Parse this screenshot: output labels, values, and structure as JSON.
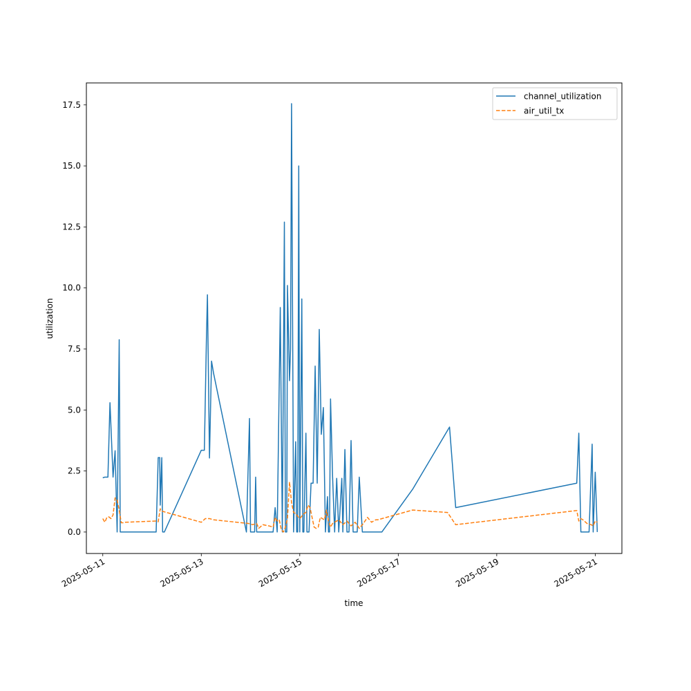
{
  "chart_data": {
    "type": "line",
    "title": "",
    "xlabel": "time",
    "ylabel": "utilization",
    "x_type": "date",
    "xlim": [
      "2025-05-10 16:00",
      "2025-05-21 13:00"
    ],
    "ylim": [
      -0.88,
      18.4
    ],
    "x_ticks": [
      "2025-05-11",
      "2025-05-13",
      "2025-05-15",
      "2025-05-17",
      "2025-05-19",
      "2025-05-21"
    ],
    "y_ticks": [
      "0.0",
      "2.5",
      "5.0",
      "7.5",
      "10.0",
      "12.5",
      "15.0",
      "17.5"
    ],
    "grid": false,
    "legend_position": "top-right",
    "series": [
      {
        "name": "channel_utilization",
        "color": "#1f77b4",
        "dash": "solid",
        "x": [
          "2025-05-11 00:00",
          "2025-05-11 01:00",
          "2025-05-11 02:30",
          "2025-05-11 03:30",
          "2025-05-11 05:00",
          "2025-05-11 06:00",
          "2025-05-11 07:00",
          "2025-05-11 08:00",
          "2025-05-11 08:30",
          "2025-05-11 09:00",
          "2025-05-11 10:00",
          "2025-05-11 11:30",
          "2025-05-12 02:00",
          "2025-05-12 03:00",
          "2025-05-12 03:45",
          "2025-05-12 04:00",
          "2025-05-12 04:45",
          "2025-05-12 05:10",
          "2025-05-12 06:00",
          "2025-05-13 00:00",
          "2025-05-13 01:30",
          "2025-05-13 02:30",
          "2025-05-13 03:00",
          "2025-05-13 04:00",
          "2025-05-13 05:00",
          "2025-05-13 06:00",
          "2025-05-13 22:00",
          "2025-05-13 23:30",
          "2025-05-14 00:00",
          "2025-05-14 02:00",
          "2025-05-14 02:30",
          "2025-05-14 03:00",
          "2025-05-14 11:00",
          "2025-05-14 12:00",
          "2025-05-14 13:00",
          "2025-05-14 14:30",
          "2025-05-14 15:30",
          "2025-05-14 16:30",
          "2025-05-14 17:00",
          "2025-05-14 17:40",
          "2025-05-14 18:00",
          "2025-05-14 19:00",
          "2025-05-14 19:30",
          "2025-05-14 20:00",
          "2025-05-14 21:00",
          "2025-05-14 22:00",
          "2025-05-14 22:30",
          "2025-05-14 23:00",
          "2025-05-14 23:30",
          "2025-05-15 00:00",
          "2025-05-15 01:00",
          "2025-05-15 01:30",
          "2025-05-15 02:00",
          "2025-05-15 03:00",
          "2025-05-15 03:30",
          "2025-05-15 04:30",
          "2025-05-15 05:30",
          "2025-05-15 06:30",
          "2025-05-15 07:30",
          "2025-05-15 08:30",
          "2025-05-15 09:30",
          "2025-05-15 10:30",
          "2025-05-15 11:30",
          "2025-05-15 12:30",
          "2025-05-15 13:30",
          "2025-05-15 14:00",
          "2025-05-15 14:30",
          "2025-05-15 15:00",
          "2025-05-15 16:00",
          "2025-05-15 17:00",
          "2025-05-15 18:00",
          "2025-05-15 19:00",
          "2025-05-15 20:30",
          "2025-05-15 21:00",
          "2025-05-15 22:00",
          "2025-05-15 23:00",
          "2025-05-16 00:00",
          "2025-05-16 01:00",
          "2025-05-16 02:00",
          "2025-05-16 03:00",
          "2025-05-16 04:00",
          "2025-05-16 05:00",
          "2025-05-16 06:30",
          "2025-05-16 07:30",
          "2025-05-16 08:00",
          "2025-05-16 10:00",
          "2025-05-16 11:00",
          "2025-05-16 12:30",
          "2025-05-16 13:30",
          "2025-05-16 16:00",
          "2025-05-17 07:00",
          "2025-05-18 01:00",
          "2025-05-18 04:00",
          "2025-05-20 15:00",
          "2025-05-20 16:00",
          "2025-05-20 17:00",
          "2025-05-20 19:00",
          "2025-05-20 21:00",
          "2025-05-20 22:30",
          "2025-05-20 23:00",
          "2025-05-21 00:00",
          "2025-05-21 01:00"
        ],
        "values": [
          2.22,
          2.25,
          2.25,
          5.3,
          2.25,
          3.33,
          0,
          7.88,
          0,
          0,
          0,
          0,
          0,
          3.05,
          3.05,
          1.1,
          3.05,
          0,
          0,
          3.35,
          3.35,
          7.9,
          9.72,
          3.03,
          7.0,
          6.5,
          0,
          4.65,
          0,
          0,
          2.25,
          0,
          0,
          1.0,
          0,
          9.2,
          0,
          12.7,
          0,
          0,
          10.1,
          6.2,
          7.5,
          17.55,
          0,
          3.7,
          0,
          0,
          15.0,
          0,
          9.55,
          0,
          0,
          4.05,
          0,
          0,
          2.0,
          2.0,
          6.8,
          2.0,
          8.3,
          4.0,
          5.1,
          0,
          1.45,
          0,
          0,
          5.45,
          2.25,
          0,
          2.2,
          0,
          2.2,
          0,
          3.38,
          0,
          0,
          3.75,
          0,
          0,
          0,
          2.25,
          0,
          0,
          0,
          0,
          0,
          0,
          0,
          0,
          1.75,
          4.3,
          1.0,
          2.0,
          4.05,
          0,
          0,
          0,
          3.6,
          0,
          2.45,
          0
        ]
      },
      {
        "name": "air_util_tx",
        "color": "#ff7f0e",
        "dash": "dashed",
        "x": [
          "2025-05-11 00:00",
          "2025-05-11 01:00",
          "2025-05-11 02:00",
          "2025-05-11 03:00",
          "2025-05-11 04:00",
          "2025-05-11 05:00",
          "2025-05-11 06:00",
          "2025-05-11 07:00",
          "2025-05-11 08:00",
          "2025-05-11 09:00",
          "2025-05-11 10:00",
          "2025-05-11 11:00",
          "2025-05-12 02:00",
          "2025-05-12 03:00",
          "2025-05-12 04:00",
          "2025-05-12 05:00",
          "2025-05-13 00:00",
          "2025-05-13 02:00",
          "2025-05-13 04:00",
          "2025-05-13 06:00",
          "2025-05-13 23:00",
          "2025-05-14 01:00",
          "2025-05-14 03:00",
          "2025-05-14 04:00",
          "2025-05-14 06:00",
          "2025-05-14 09:00",
          "2025-05-14 11:00",
          "2025-05-14 12:00",
          "2025-05-14 13:00",
          "2025-05-14 14:00",
          "2025-05-14 15:00",
          "2025-05-14 16:00",
          "2025-05-14 17:00",
          "2025-05-14 18:00",
          "2025-05-14 19:00",
          "2025-05-14 20:00",
          "2025-05-14 21:00",
          "2025-05-14 22:00",
          "2025-05-15 00:00",
          "2025-05-15 02:00",
          "2025-05-15 03:00",
          "2025-05-15 04:00",
          "2025-05-15 05:00",
          "2025-05-15 06:00",
          "2025-05-15 07:00",
          "2025-05-15 08:00",
          "2025-05-15 09:00",
          "2025-05-15 10:00",
          "2025-05-15 12:00",
          "2025-05-15 13:00",
          "2025-05-15 14:00",
          "2025-05-15 15:00",
          "2025-05-15 16:00",
          "2025-05-15 17:00",
          "2025-05-15 19:00",
          "2025-05-15 21:00",
          "2025-05-15 23:00",
          "2025-05-16 01:00",
          "2025-05-16 03:00",
          "2025-05-16 05:00",
          "2025-05-16 07:00",
          "2025-05-16 09:00",
          "2025-05-16 11:00",
          "2025-05-16 13:00",
          "2025-05-16 14:00",
          "2025-05-17 07:00",
          "2025-05-18 00:00",
          "2025-05-18 04:00",
          "2025-05-20 15:00",
          "2025-05-20 16:00",
          "2025-05-20 17:00",
          "2025-05-20 18:00",
          "2025-05-20 20:00",
          "2025-05-20 22:00",
          "2025-05-20 23:00",
          "2025-05-21 00:00",
          "2025-05-21 01:00"
        ],
        "values": [
          0.55,
          0.4,
          0.6,
          0.62,
          0.55,
          0.7,
          1.4,
          1.3,
          0.9,
          0.38,
          0.38,
          0.4,
          0.45,
          0.42,
          0.95,
          0.85,
          0.4,
          0.55,
          0.55,
          0.5,
          0.35,
          0.3,
          0.35,
          0.15,
          0.3,
          0.25,
          0.2,
          0.6,
          0.45,
          0.5,
          0.1,
          0.0,
          0.2,
          0.55,
          2.05,
          1.2,
          0.8,
          0.75,
          0.55,
          0.75,
          0.8,
          1.1,
          1.0,
          0.6,
          0.2,
          0.15,
          0.2,
          0.6,
          0.5,
          0.9,
          0.45,
          0.2,
          0.35,
          0.4,
          0.5,
          0.3,
          0.45,
          0.25,
          0.4,
          0.15,
          0.35,
          0.6,
          0.4,
          0.5,
          0.5,
          0.9,
          0.8,
          0.3,
          0.88,
          0.45,
          0.55,
          0.5,
          0.35,
          0.3,
          0.25,
          0.45,
          0.4
        ]
      }
    ]
  }
}
